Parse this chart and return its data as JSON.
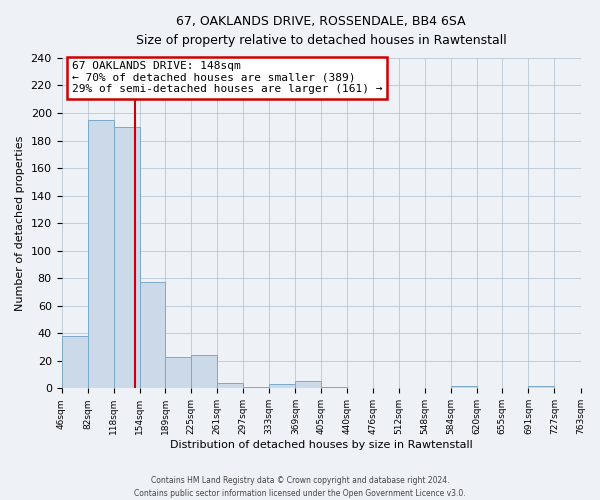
{
  "title": "67, OAKLANDS DRIVE, ROSSENDALE, BB4 6SA",
  "subtitle": "Size of property relative to detached houses in Rawtenstall",
  "xlabel": "Distribution of detached houses by size in Rawtenstall",
  "ylabel": "Number of detached properties",
  "bin_edges": [
    46,
    82,
    118,
    154,
    189,
    225,
    261,
    297,
    333,
    369,
    405,
    440,
    476,
    512,
    548,
    584,
    620,
    655,
    691,
    727,
    763
  ],
  "bar_heights": [
    38,
    195,
    190,
    77,
    23,
    24,
    4,
    1,
    3,
    5,
    1,
    0,
    0,
    0,
    0,
    2,
    0,
    0,
    2,
    0
  ],
  "bar_color": "#ccd9e8",
  "bar_edgecolor": "#7aaac8",
  "property_size": 148,
  "vline_color": "#cc0000",
  "annotation_box_edgecolor": "#cc0000",
  "annotation_line1": "67 OAKLANDS DRIVE: 148sqm",
  "annotation_line2": "← 70% of detached houses are smaller (389)",
  "annotation_line3": "29% of semi-detached houses are larger (161) →",
  "ylim": [
    0,
    240
  ],
  "yticks": [
    0,
    20,
    40,
    60,
    80,
    100,
    120,
    140,
    160,
    180,
    200,
    220,
    240
  ],
  "tick_labels": [
    "46sqm",
    "82sqm",
    "118sqm",
    "154sqm",
    "189sqm",
    "225sqm",
    "261sqm",
    "297sqm",
    "333sqm",
    "369sqm",
    "405sqm",
    "440sqm",
    "476sqm",
    "512sqm",
    "548sqm",
    "584sqm",
    "620sqm",
    "655sqm",
    "691sqm",
    "727sqm",
    "763sqm"
  ],
  "footer_line1": "Contains HM Land Registry data © Crown copyright and database right 2024.",
  "footer_line2": "Contains public sector information licensed under the Open Government Licence v3.0.",
  "background_color": "#eef2f7",
  "plot_bg_color": "#eef2f7",
  "grid_color": "#b0bfcc"
}
